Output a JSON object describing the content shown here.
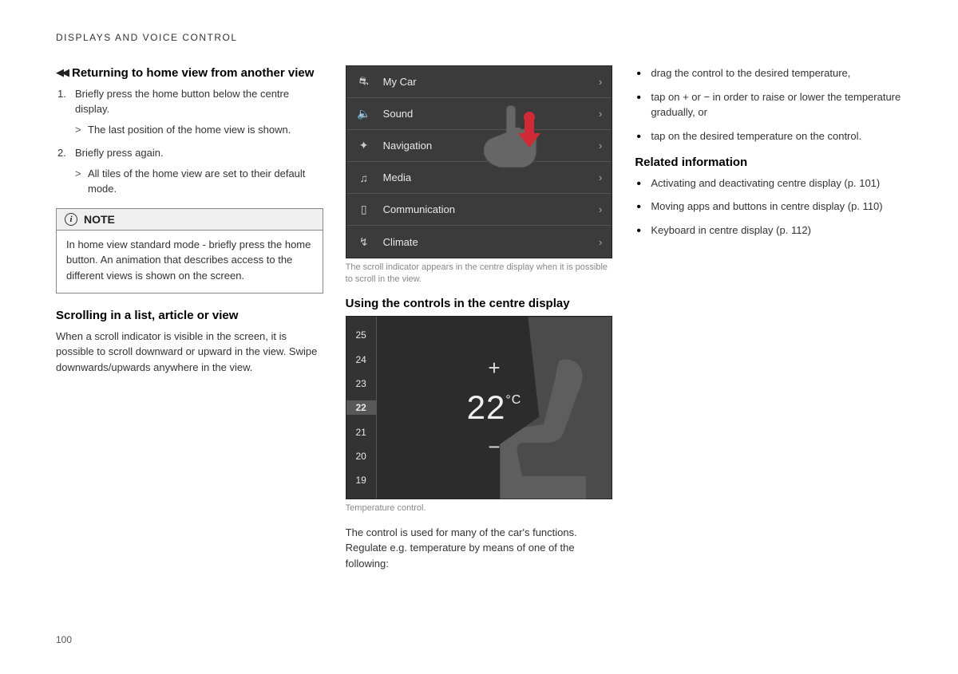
{
  "section_header": "DISPLAYS AND VOICE CONTROL",
  "page_number": "100",
  "col1": {
    "h1": "Returning to home view from another view",
    "step1": "Briefly press the home button below the centre display.",
    "step1_sub": "The last position of the home view is shown.",
    "step2": "Briefly press again.",
    "step2_sub": "All tiles of the home view are set to their default mode.",
    "note_label": "NOTE",
    "note_body": "In home view standard mode - briefly press the home button. An animation that describes access to the different views is shown on the screen.",
    "h2": "Scrolling in a list, article or view",
    "p2": "When a scroll indicator is visible in the screen, it is possible to scroll downward or upward in the view. Swipe downwards/upwards anywhere in the view."
  },
  "col2": {
    "menu_items": [
      {
        "icon": "⛐",
        "label": "My Car"
      },
      {
        "icon": "🔈",
        "label": "Sound"
      },
      {
        "icon": "✦",
        "label": "Navigation"
      },
      {
        "icon": "♫",
        "label": "Media"
      },
      {
        "icon": "▯",
        "label": "Communication"
      },
      {
        "icon": "↯",
        "label": "Climate"
      }
    ],
    "caption1": "The scroll indicator appears in the centre display when it is possible to scroll in the view.",
    "h1": "Using the controls in the centre display",
    "temp_scale": [
      "25",
      "24",
      "23",
      "22",
      "21",
      "20",
      "19"
    ],
    "temp_value": "22",
    "temp_unit": "°C",
    "caption2": "Temperature control.",
    "p1": "The control is used for many of the car's functions. Regulate e.g. temperature by means of one of the following:"
  },
  "col3": {
    "b1": "drag the control to the desired temperature,",
    "b2": "tap on + or − in order to raise or lower the temperature gradually, or",
    "b3": "tap on the desired temperature on the control.",
    "h1": "Related information",
    "r1": "Activating and deactivating centre display (p. 101)",
    "r2": "Moving apps and buttons in centre display (p. 110)",
    "r3": "Keyboard in centre display (p. 112)"
  },
  "style": {
    "bg": "#ffffff",
    "text": "#333333",
    "heading": "#000000",
    "caption": "#888888",
    "mock_bg": "#3b3b3b",
    "mock_bg2": "#2c2c2c",
    "accent_red": "#d12a36"
  }
}
